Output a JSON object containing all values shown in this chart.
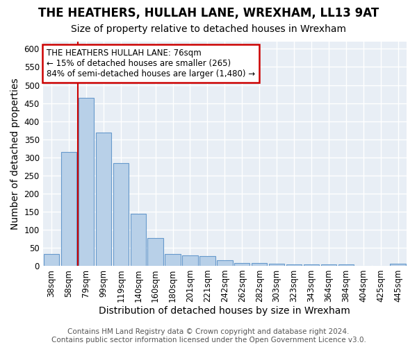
{
  "title": "THE HEATHERS, HULLAH LANE, WREXHAM, LL13 9AT",
  "subtitle": "Size of property relative to detached houses in Wrexham",
  "xlabel": "Distribution of detached houses by size in Wrexham",
  "ylabel": "Number of detached properties",
  "categories": [
    "38sqm",
    "58sqm",
    "79sqm",
    "99sqm",
    "119sqm",
    "140sqm",
    "160sqm",
    "180sqm",
    "201sqm",
    "221sqm",
    "242sqm",
    "262sqm",
    "282sqm",
    "303sqm",
    "323sqm",
    "343sqm",
    "364sqm",
    "384sqm",
    "404sqm",
    "425sqm",
    "445sqm"
  ],
  "values": [
    32,
    315,
    465,
    368,
    284,
    143,
    76,
    32,
    29,
    27,
    15,
    8,
    7,
    5,
    4,
    4,
    4,
    4,
    0,
    0,
    5
  ],
  "bar_color": "#b8d0e8",
  "bar_edge_color": "#6699cc",
  "red_line_x": 1.5,
  "annotation_text": "THE HEATHERS HULLAH LANE: 76sqm\n← 15% of detached houses are smaller (265)\n84% of semi-detached houses are larger (1,480) →",
  "annotation_box_color": "#ffffff",
  "annotation_box_edge_color": "#cc0000",
  "red_line_color": "#cc0000",
  "footer_line1": "Contains HM Land Registry data © Crown copyright and database right 2024.",
  "footer_line2": "Contains public sector information licensed under the Open Government Licence v3.0.",
  "ylim": [
    0,
    620
  ],
  "yticks": [
    0,
    50,
    100,
    150,
    200,
    250,
    300,
    350,
    400,
    450,
    500,
    550,
    600
  ],
  "fig_background": "#ffffff",
  "plot_background": "#e8eef5",
  "grid_color": "#ffffff",
  "title_fontsize": 12,
  "subtitle_fontsize": 10,
  "axis_label_fontsize": 10,
  "tick_fontsize": 8.5,
  "annotation_fontsize": 8.5,
  "footer_fontsize": 7.5
}
